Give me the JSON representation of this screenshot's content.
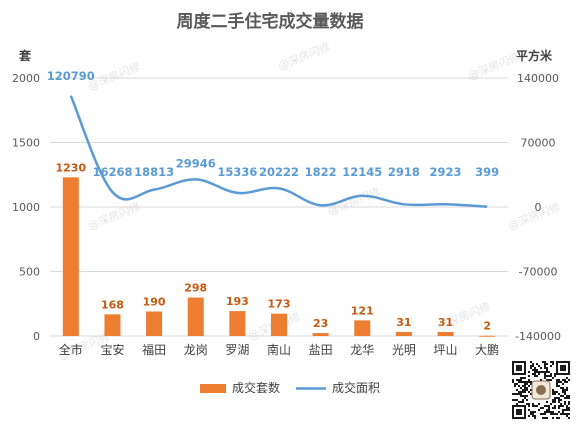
{
  "chart_data": {
    "type": "bar+line",
    "title": "周度二手住宅成交量数据",
    "left_axis_unit": "套",
    "right_axis_unit": "平方米",
    "left_ylim": [
      0,
      2000
    ],
    "left_ticks": [
      0,
      500,
      1000,
      1500,
      2000
    ],
    "right_ylim": [
      -140000,
      140000
    ],
    "right_ticks": [
      -140000,
      -70000,
      0,
      70000,
      140000
    ],
    "categories": [
      "全市",
      "宝安",
      "福田",
      "龙岗",
      "罗湖",
      "南山",
      "盐田",
      "龙华",
      "光明",
      "坪山",
      "大鹏"
    ],
    "series": [
      {
        "name": "成交套数",
        "type": "bar",
        "axis": "left",
        "color": "#ed7d31",
        "values": [
          1230,
          168,
          190,
          298,
          193,
          173,
          23,
          121,
          31,
          31,
          2
        ]
      },
      {
        "name": "成交面积",
        "type": "line",
        "axis": "right",
        "color": "#5b9bd5",
        "values": [
          120790,
          16268,
          18813,
          29946,
          15336,
          20222,
          1822,
          12145,
          2918,
          2923,
          399
        ]
      }
    ],
    "legend_position": "bottom",
    "grid": true,
    "watermark": "@深房闪修"
  },
  "colors": {
    "title": "#595959",
    "axis_text": "#595959",
    "grid": "#d9d9d9",
    "bar": "#ed7d31",
    "bar_label": "#c55a11",
    "line": "#5b9bd5",
    "line_label": "#5b9bd5"
  }
}
